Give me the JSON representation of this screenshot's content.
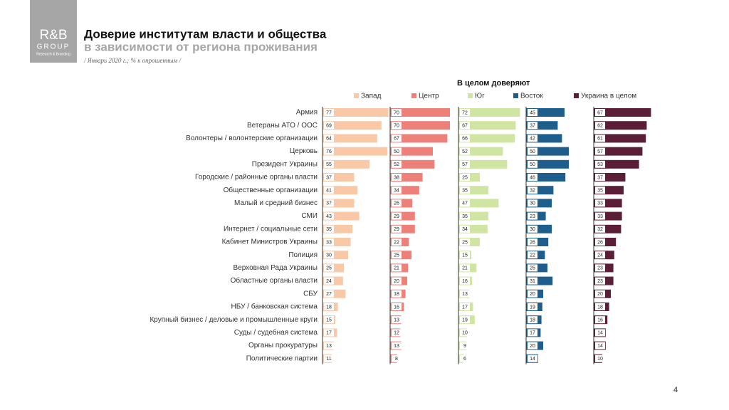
{
  "logo": {
    "name": "R&B",
    "group": "GROUP",
    "tagline": "Research & Branding"
  },
  "header": {
    "title": "Доверие институтам власти и общества",
    "subtitle": "в зависимости от региона проживания",
    "note": "/ Январь 2020 г.; % к опрошенным /"
  },
  "chart_data": {
    "type": "bar",
    "title": "В целом доверяют",
    "categories": [
      "Армия",
      "Ветераны АТО / ООС",
      "Волонтеры / волонтерские организации",
      "Церковь",
      "Президент Украины",
      "Городские / районные органы власти",
      "Общественные организации",
      "Малый и средний бизнес",
      "СМИ",
      "Интернет / социальные сети",
      "Кабинет Министров Украины",
      "Полиция",
      "Верховная Рада Украины",
      "Областные органы власти",
      "СБУ",
      "НБУ / банковская система",
      "Крупный бизнес / деловые и промышленные круги",
      "Суды / судебная система",
      "Органы прокуратуры",
      "Политические партии"
    ],
    "series": [
      {
        "name": "Запад",
        "color": "#f9c8a6",
        "values": [
          77,
          69,
          64,
          76,
          55,
          37,
          41,
          37,
          43,
          35,
          33,
          30,
          25,
          24,
          27,
          18,
          15,
          17,
          13,
          11
        ]
      },
      {
        "name": "Центр",
        "color": "#ee807a",
        "values": [
          70,
          70,
          67,
          50,
          52,
          38,
          34,
          26,
          29,
          29,
          22,
          25,
          21,
          20,
          18,
          16,
          13,
          12,
          13,
          8
        ]
      },
      {
        "name": "Юг",
        "color": "#cfe5a1",
        "values": [
          72,
          67,
          66,
          52,
          57,
          25,
          35,
          47,
          35,
          34,
          25,
          15,
          21,
          16,
          13,
          17,
          19,
          10,
          9,
          6
        ]
      },
      {
        "name": "Восток",
        "color": "#1d5e8c",
        "values": [
          45,
          37,
          42,
          50,
          50,
          46,
          32,
          30,
          23,
          30,
          26,
          22,
          25,
          31,
          20,
          19,
          18,
          17,
          20,
          14
        ]
      },
      {
        "name": "Украина в целом",
        "color": "#5a1f37",
        "values": [
          67,
          62,
          61,
          57,
          53,
          37,
          35,
          33,
          33,
          32,
          26,
          24,
          23,
          23,
          20,
          18,
          16,
          14,
          14,
          10
        ]
      }
    ]
  },
  "page_number": "4"
}
